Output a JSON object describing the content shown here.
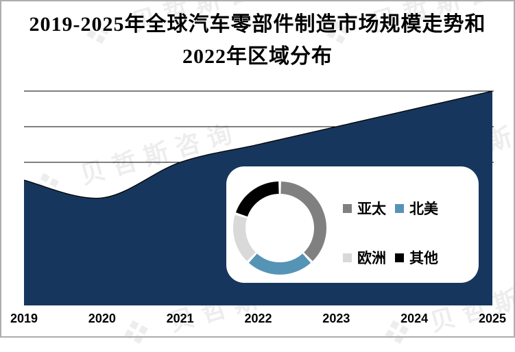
{
  "title": {
    "line1": "2019-2025年全球汽车零部件制造市场规模走势和",
    "line2": "2022年区域分布"
  },
  "watermark": {
    "logo": "❖",
    "text": "贝哲斯咨询"
  },
  "colors": {
    "area": "#17365D",
    "grid": "#000000",
    "frame_border": "#ADADAD",
    "inset_bg": "#FFFFFF"
  },
  "chart_data": [
    {
      "type": "area",
      "title": "2019-2025年全球汽车零部件制造市场规模走势和2022年区域分布",
      "categories": [
        "2019",
        "2020",
        "2021",
        "2022",
        "2023",
        "2024",
        "2025"
      ],
      "values": [
        3.5,
        3.0,
        4.0,
        4.5,
        5.0,
        5.5,
        6.0
      ],
      "value_note": "no y-axis labels shown; values are relative units where 1 unit = one gridline interval, baseline = 0",
      "xlabel": "",
      "ylabel": "",
      "ylim": [
        0,
        6
      ],
      "grid": "3 horizontal gridlines visible (at 4, 5 and 6 units)",
      "area_color": "#17365D",
      "edge_color": "#000000"
    },
    {
      "type": "pie",
      "subtype": "donut",
      "title": "2022年区域分布",
      "labels": [
        "亚太",
        "北美",
        "欧洲",
        "其他"
      ],
      "values_percent": [
        38,
        24,
        18,
        20
      ],
      "colors": [
        "#808080",
        "#5694B5",
        "#D9D9D9",
        "#000000"
      ],
      "start": "12 o'clock, clockwise",
      "legend_position": "right of donut, 2x2 grid"
    }
  ]
}
